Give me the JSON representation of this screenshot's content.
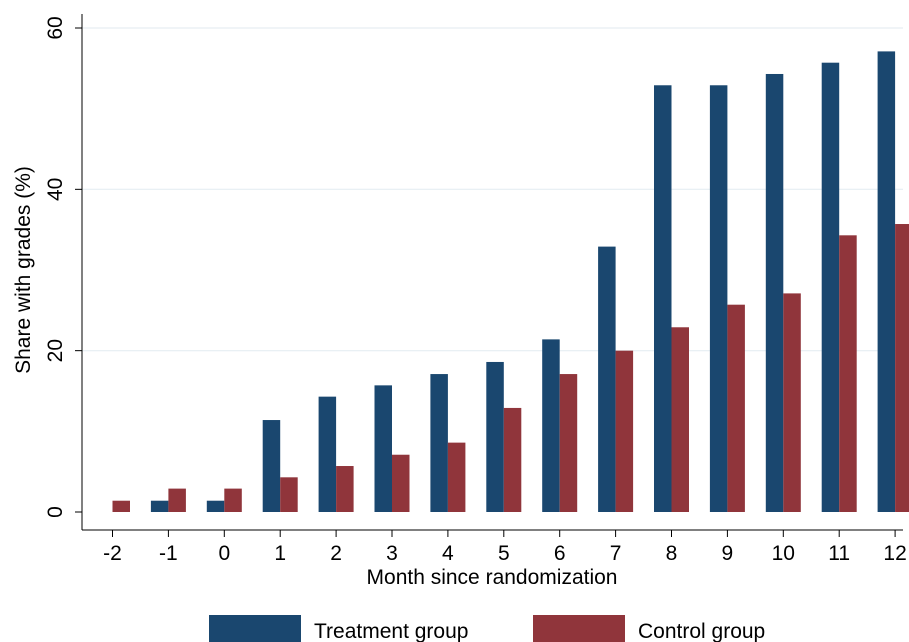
{
  "chart_data": {
    "type": "bar",
    "categories": [
      "-2",
      "-1",
      "0",
      "1",
      "2",
      "3",
      "4",
      "5",
      "6",
      "7",
      "8",
      "9",
      "10",
      "11",
      "12"
    ],
    "series": [
      {
        "name": "Treatment group",
        "color": "#1a476f",
        "values": [
          0,
          1.4,
          1.4,
          11.4,
          14.3,
          15.7,
          17.1,
          18.6,
          21.4,
          32.9,
          52.9,
          52.9,
          54.3,
          55.7,
          57.1
        ]
      },
      {
        "name": "Control group",
        "color": "#90353b",
        "values": [
          1.4,
          2.9,
          2.9,
          4.3,
          5.7,
          7.1,
          8.6,
          12.9,
          17.1,
          20.0,
          22.9,
          25.7,
          27.1,
          34.3,
          35.7
        ]
      }
    ],
    "xlabel": "Month since randomization",
    "ylabel": "Share with grades (%)",
    "ylim": [
      0,
      60
    ],
    "yticks": [
      "0",
      "20",
      "40",
      "60"
    ],
    "grid": true,
    "legend_position": "bottom"
  }
}
